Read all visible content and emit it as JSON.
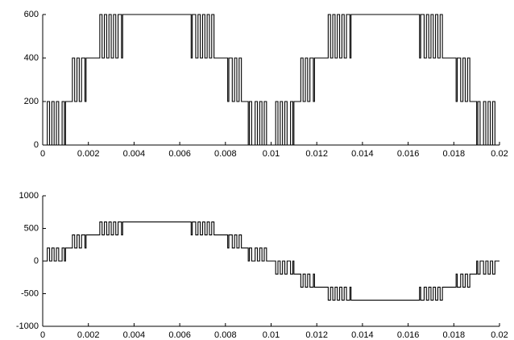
{
  "chart_data": [
    {
      "type": "line",
      "drawstyle": "steps-post",
      "color": "#000000",
      "xlim": [
        0,
        0.02
      ],
      "xticks": [
        0,
        0.002,
        0.004,
        0.006,
        0.008,
        0.01,
        0.012,
        0.014,
        0.016,
        0.018,
        0.02
      ],
      "ylim": [
        0,
        600
      ],
      "yticks": [
        0,
        200,
        400,
        600
      ],
      "x": [
        0,
        0.0002,
        0.0003,
        0.0004,
        0.0005,
        0.0006,
        0.0007,
        0.00085,
        0.00095,
        0.001,
        0.0013,
        0.0014,
        0.0015,
        0.0016,
        0.0017,
        0.00185,
        0.0019,
        0.0025,
        0.0026,
        0.0027,
        0.0028,
        0.0029,
        0.003,
        0.0031,
        0.0032,
        0.0033,
        0.00345,
        0.0035,
        0.0065,
        0.00655,
        0.0067,
        0.0068,
        0.0069,
        0.007,
        0.0071,
        0.0072,
        0.0073,
        0.0074,
        0.0075,
        0.0081,
        0.00815,
        0.0083,
        0.0084,
        0.0085,
        0.0086,
        0.0087,
        0.009,
        0.00905,
        0.00915,
        0.0093,
        0.0094,
        0.0095,
        0.0096,
        0.0097,
        0.0098,
        0.01,
        0.0102,
        0.0103,
        0.0104,
        0.0105,
        0.0106,
        0.0107,
        0.01085,
        0.01095,
        0.011,
        0.0113,
        0.0114,
        0.0115,
        0.0116,
        0.0117,
        0.01185,
        0.0119,
        0.0125,
        0.0126,
        0.0127,
        0.0128,
        0.0129,
        0.013,
        0.0131,
        0.0132,
        0.0133,
        0.01345,
        0.0135,
        0.0165,
        0.01655,
        0.0167,
        0.0168,
        0.0169,
        0.017,
        0.0171,
        0.0172,
        0.0173,
        0.0174,
        0.0175,
        0.0181,
        0.01815,
        0.0183,
        0.0184,
        0.0185,
        0.0186,
        0.0187,
        0.019,
        0.01905,
        0.01915,
        0.0193,
        0.0194,
        0.0195,
        0.0196,
        0.0197,
        0.0198,
        0.02
      ],
      "values": [
        0,
        200,
        0,
        200,
        0,
        200,
        0,
        200,
        0,
        200,
        400,
        200,
        400,
        200,
        400,
        200,
        400,
        600,
        400,
        600,
        400,
        600,
        400,
        600,
        400,
        600,
        400,
        600,
        400,
        600,
        400,
        600,
        400,
        600,
        400,
        600,
        400,
        600,
        400,
        200,
        400,
        200,
        400,
        200,
        400,
        200,
        0,
        200,
        0,
        200,
        0,
        200,
        0,
        200,
        0,
        0,
        200,
        0,
        200,
        0,
        200,
        0,
        200,
        0,
        200,
        400,
        200,
        400,
        200,
        400,
        200,
        400,
        600,
        400,
        600,
        400,
        600,
        400,
        600,
        400,
        600,
        400,
        600,
        400,
        600,
        400,
        600,
        400,
        600,
        400,
        600,
        400,
        600,
        400,
        200,
        400,
        200,
        400,
        200,
        400,
        200,
        0,
        200,
        0,
        200,
        0,
        200,
        0,
        200,
        0,
        0
      ]
    },
    {
      "type": "line",
      "drawstyle": "steps-post",
      "color": "#000000",
      "xlim": [
        0,
        0.02
      ],
      "xticks": [
        0,
        0.002,
        0.004,
        0.006,
        0.008,
        0.01,
        0.012,
        0.014,
        0.016,
        0.018,
        0.02
      ],
      "ylim": [
        -1000,
        1000
      ],
      "yticks": [
        -1000,
        -500,
        0,
        500,
        1000
      ],
      "x": [
        0,
        0.0002,
        0.0003,
        0.0004,
        0.0005,
        0.0006,
        0.0007,
        0.00085,
        0.00095,
        0.001,
        0.0013,
        0.0014,
        0.0015,
        0.0016,
        0.0017,
        0.00185,
        0.0019,
        0.0025,
        0.0026,
        0.0027,
        0.0028,
        0.0029,
        0.003,
        0.0031,
        0.0032,
        0.0033,
        0.00345,
        0.0035,
        0.0065,
        0.00655,
        0.0067,
        0.0068,
        0.0069,
        0.007,
        0.0071,
        0.0072,
        0.0073,
        0.0074,
        0.0075,
        0.0081,
        0.00815,
        0.0083,
        0.0084,
        0.0085,
        0.0086,
        0.0087,
        0.009,
        0.00905,
        0.00915,
        0.0093,
        0.0094,
        0.0095,
        0.0096,
        0.0097,
        0.0098,
        0.01,
        0.0102,
        0.0103,
        0.0104,
        0.0105,
        0.0106,
        0.0107,
        0.01085,
        0.01095,
        0.011,
        0.0113,
        0.0114,
        0.0115,
        0.0116,
        0.0117,
        0.01185,
        0.0119,
        0.0125,
        0.0126,
        0.0127,
        0.0128,
        0.0129,
        0.013,
        0.0131,
        0.0132,
        0.0133,
        0.01345,
        0.0135,
        0.0165,
        0.01655,
        0.0167,
        0.0168,
        0.0169,
        0.017,
        0.0171,
        0.0172,
        0.0173,
        0.0174,
        0.0175,
        0.0181,
        0.01815,
        0.0183,
        0.0184,
        0.0185,
        0.0186,
        0.0187,
        0.019,
        0.01905,
        0.01915,
        0.0193,
        0.0194,
        0.0195,
        0.0196,
        0.0197,
        0.0198,
        0.02
      ],
      "values": [
        0,
        200,
        0,
        200,
        0,
        200,
        0,
        200,
        0,
        200,
        400,
        200,
        400,
        200,
        400,
        200,
        400,
        600,
        400,
        600,
        400,
        600,
        400,
        600,
        400,
        600,
        400,
        600,
        400,
        600,
        400,
        600,
        400,
        600,
        400,
        600,
        400,
        600,
        400,
        200,
        400,
        200,
        400,
        200,
        400,
        200,
        0,
        200,
        0,
        200,
        0,
        200,
        0,
        200,
        0,
        0,
        -200,
        0,
        -200,
        0,
        -200,
        0,
        -200,
        0,
        -200,
        -400,
        -200,
        -400,
        -200,
        -400,
        -200,
        -400,
        -600,
        -400,
        -600,
        -400,
        -600,
        -400,
        -600,
        -400,
        -600,
        -400,
        -600,
        -400,
        -600,
        -400,
        -600,
        -400,
        -600,
        -400,
        -600,
        -400,
        -600,
        -400,
        -200,
        -400,
        -200,
        -400,
        -200,
        -400,
        -200,
        0,
        -200,
        0,
        -200,
        0,
        -200,
        0,
        -200,
        0,
        0
      ]
    }
  ]
}
